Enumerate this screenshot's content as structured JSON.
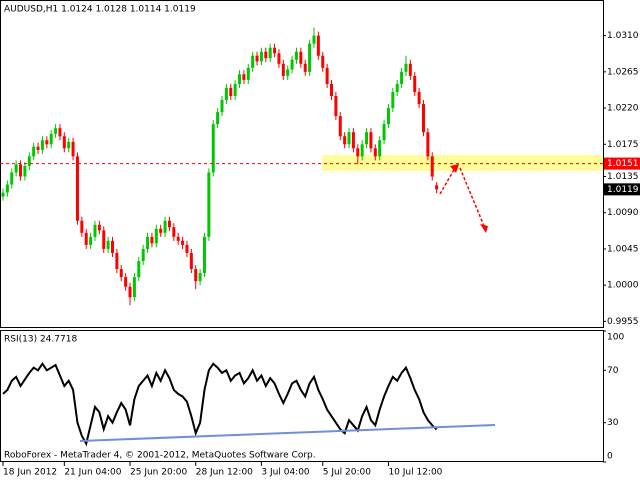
{
  "chart_data": [
    {
      "type": "candlestick",
      "title": "AUDUSD,H1  1.0124 1.0128 1.0114 1.0119",
      "up_color": "#00c800",
      "down_color": "#ff0000",
      "ylim": [
        0.9948,
        1.0353
      ],
      "yticks": [
        {
          "value": 1.031,
          "label": "1.0310"
        },
        1.0265,
        {
          "value": 1.022,
          "label": "1.0220"
        },
        1.0175,
        1.0135,
        {
          "value": 1.009,
          "label": "1.0090"
        },
        1.0045,
        {
          "value": 1.0,
          "label": "1.0000"
        },
        0.9955
      ],
      "markers": [
        {
          "value": 1.0151,
          "color": "#ff0000",
          "line": true
        },
        {
          "value": 1.0119,
          "color": "#000000",
          "line": false
        }
      ],
      "open": [
        1.011,
        1.0115,
        1.0125,
        1.014,
        1.015,
        1.0135,
        1.0148,
        1.016,
        1.0172,
        1.0168,
        1.018,
        1.0175,
        1.0188,
        1.0195,
        1.0185,
        1.017,
        1.0178,
        1.016,
        1.008,
        1.0065,
        1.005,
        1.006,
        1.0075,
        1.0068,
        1.0045,
        1.0055,
        1.004,
        1.002,
        1.001,
        0.9998,
        0.9985,
        1.001,
        1.003,
        1.0045,
        1.006,
        1.0052,
        1.007,
        1.0065,
        1.008,
        1.0072,
        1.006,
        1.0055,
        1.005,
        1.004,
        1.002,
        1.0005,
        1.0015,
        1.006,
        1.014,
        1.02,
        1.0215,
        1.023,
        1.0245,
        1.0235,
        1.025,
        1.0262,
        1.0255,
        1.027,
        1.0285,
        1.0278,
        1.029,
        1.0282,
        1.0295,
        1.0288,
        1.0275,
        1.026,
        1.0268,
        1.028,
        1.029,
        1.0275,
        1.0265,
        1.03,
        1.031,
        1.0285,
        1.027,
        1.025,
        1.0235,
        1.021,
        1.0185,
        1.0175,
        1.019,
        1.017,
        1.016,
        1.0175,
        1.019,
        1.017,
        1.016,
        1.018,
        1.02,
        1.022,
        1.024,
        1.025,
        1.0265,
        1.0275,
        1.026,
        1.024,
        1.0225,
        1.019,
        1.016,
        1.0124
      ],
      "high": [
        1.012,
        1.013,
        1.0145,
        1.0155,
        1.0155,
        1.0153,
        1.0165,
        1.0177,
        1.0177,
        1.0185,
        1.0185,
        1.0193,
        1.02,
        1.02,
        1.019,
        1.0183,
        1.0183,
        1.0165,
        1.0085,
        1.007,
        1.0065,
        1.008,
        1.008,
        1.0073,
        1.006,
        1.006,
        1.0045,
        1.0025,
        1.0015,
        1.0003,
        1.0015,
        1.0035,
        1.005,
        1.0065,
        1.0065,
        1.0075,
        1.0075,
        1.0085,
        1.0085,
        1.0077,
        1.0065,
        1.006,
        1.0055,
        1.0045,
        1.0025,
        1.002,
        1.0065,
        1.0145,
        1.0205,
        1.022,
        1.0235,
        1.025,
        1.025,
        1.0255,
        1.0267,
        1.0267,
        1.0275,
        1.029,
        1.029,
        1.0295,
        1.0295,
        1.03,
        1.03,
        1.0293,
        1.028,
        1.0273,
        1.0285,
        1.0295,
        1.0295,
        1.028,
        1.0305,
        1.032,
        1.0315,
        1.029,
        1.0275,
        1.0255,
        1.024,
        1.0215,
        1.019,
        1.0195,
        1.0195,
        1.0175,
        1.018,
        1.0195,
        1.0195,
        1.0175,
        1.0185,
        1.0205,
        1.0225,
        1.0245,
        1.0255,
        1.027,
        1.0285,
        1.028,
        1.0265,
        1.0245,
        1.023,
        1.0195,
        1.0165,
        1.0128
      ],
      "low": [
        1.0105,
        1.011,
        1.012,
        1.0135,
        1.013,
        1.013,
        1.0143,
        1.0155,
        1.0163,
        1.0163,
        1.017,
        1.017,
        1.0183,
        1.018,
        1.0165,
        1.0165,
        1.0155,
        1.0075,
        1.006,
        1.0045,
        1.0045,
        1.0055,
        1.0063,
        1.004,
        1.004,
        1.0035,
        1.0015,
        1.0005,
        0.9993,
        0.9975,
        0.998,
        1.0005,
        1.0025,
        1.004,
        1.0047,
        1.0047,
        1.006,
        1.006,
        1.0067,
        1.0055,
        1.005,
        1.0045,
        1.0035,
        1.0015,
        0.9995,
        1.0,
        1.001,
        1.0055,
        1.0135,
        1.0195,
        1.021,
        1.0225,
        1.023,
        1.023,
        1.0245,
        1.025,
        1.025,
        1.0265,
        1.0273,
        1.0273,
        1.0277,
        1.0277,
        1.0283,
        1.027,
        1.0255,
        1.0255,
        1.0263,
        1.0275,
        1.027,
        1.026,
        1.026,
        1.0295,
        1.028,
        1.0265,
        1.0245,
        1.023,
        1.0205,
        1.018,
        1.017,
        1.017,
        1.0165,
        1.015,
        1.0155,
        1.017,
        1.0165,
        1.0155,
        1.0155,
        1.0175,
        1.0195,
        1.0215,
        1.0235,
        1.0245,
        1.026,
        1.0255,
        1.0235,
        1.022,
        1.0185,
        1.0155,
        1.013,
        1.0114
      ],
      "close": [
        1.0115,
        1.0125,
        1.014,
        1.015,
        1.0135,
        1.0148,
        1.016,
        1.0172,
        1.0168,
        1.018,
        1.0175,
        1.0188,
        1.0195,
        1.0185,
        1.017,
        1.0178,
        1.016,
        1.008,
        1.0065,
        1.005,
        1.006,
        1.0075,
        1.0068,
        1.0045,
        1.0055,
        1.004,
        1.002,
        1.001,
        0.9998,
        0.9985,
        1.001,
        1.003,
        1.0045,
        1.006,
        1.0052,
        1.007,
        1.0065,
        1.008,
        1.0072,
        1.006,
        1.0055,
        1.005,
        1.004,
        1.002,
        1.0005,
        1.0015,
        1.006,
        1.014,
        1.02,
        1.0215,
        1.023,
        1.0245,
        1.0235,
        1.025,
        1.0262,
        1.0255,
        1.027,
        1.0285,
        1.0278,
        1.029,
        1.0282,
        1.0295,
        1.0288,
        1.0275,
        1.026,
        1.0268,
        1.028,
        1.029,
        1.0275,
        1.0265,
        1.03,
        1.031,
        1.0285,
        1.027,
        1.025,
        1.0235,
        1.021,
        1.0185,
        1.0175,
        1.019,
        1.017,
        1.016,
        1.0175,
        1.019,
        1.017,
        1.016,
        1.018,
        1.02,
        1.022,
        1.024,
        1.025,
        1.0265,
        1.0275,
        1.026,
        1.024,
        1.0225,
        1.019,
        1.016,
        1.0135,
        1.0119
      ]
    },
    {
      "type": "line",
      "title": "RSI(13) 24.7718",
      "color": "#000000",
      "ylim": [
        0,
        100
      ],
      "yticks": [
        100,
        70,
        30,
        0
      ],
      "categories": [
        "18 Jun 2012",
        null,
        null,
        null,
        null,
        null,
        null,
        null,
        null,
        null,
        null,
        null,
        null,
        null,
        "21 Jun 04:00",
        null,
        null,
        null,
        null,
        null,
        null,
        null,
        null,
        null,
        null,
        null,
        null,
        null,
        null,
        "25 Jun 20:00",
        null,
        null,
        null,
        null,
        null,
        null,
        null,
        null,
        null,
        null,
        null,
        null,
        null,
        null,
        "28 Jun 12:00",
        null,
        null,
        null,
        null,
        null,
        null,
        null,
        null,
        null,
        null,
        null,
        null,
        null,
        null,
        "3 Jul 04:00",
        null,
        null,
        null,
        null,
        null,
        null,
        null,
        null,
        null,
        null,
        null,
        null,
        null,
        "5 Jul 20:00",
        null,
        null,
        null,
        null,
        null,
        null,
        null,
        null,
        null,
        null,
        null,
        null,
        null,
        null,
        "10 Jul 12:00",
        null,
        null,
        null,
        null,
        null,
        null,
        null,
        null,
        null,
        null,
        null
      ],
      "values": [
        52,
        55,
        62,
        65,
        58,
        63,
        68,
        72,
        70,
        75,
        70,
        72,
        74,
        66,
        58,
        62,
        55,
        30,
        20,
        14,
        28,
        42,
        38,
        25,
        35,
        30,
        38,
        45,
        40,
        28,
        48,
        58,
        62,
        66,
        58,
        68,
        62,
        70,
        64,
        55,
        52,
        50,
        46,
        35,
        22,
        30,
        55,
        70,
        75,
        72,
        68,
        70,
        62,
        66,
        68,
        60,
        64,
        70,
        62,
        66,
        58,
        64,
        60,
        52,
        45,
        52,
        60,
        62,
        55,
        50,
        60,
        65,
        55,
        48,
        40,
        35,
        30,
        25,
        22,
        32,
        28,
        24,
        35,
        42,
        32,
        28,
        40,
        50,
        58,
        65,
        62,
        68,
        72,
        64,
        55,
        48,
        38,
        32,
        28,
        24.7718
      ],
      "footer": "RoboForex - MetaTrader 4, © 2001-2012, MetaQuotes Software Corp."
    }
  ]
}
